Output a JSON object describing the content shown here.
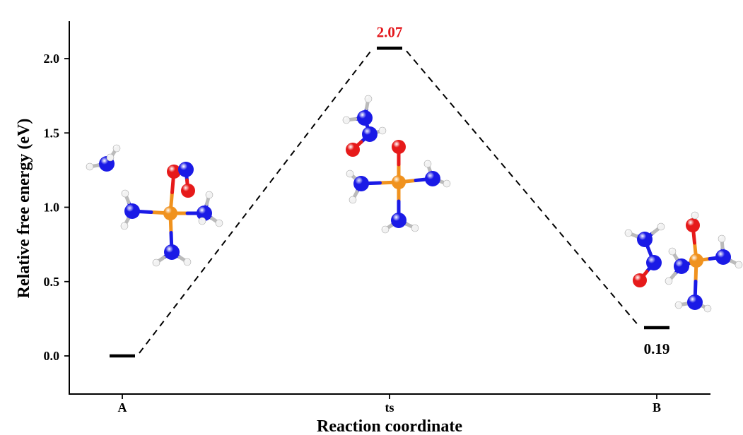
{
  "chart_data": {
    "type": "line",
    "categories": [
      "A",
      "ts",
      "B"
    ],
    "values": [
      0.0,
      2.07,
      0.19
    ],
    "labels": [
      "",
      "2.07",
      "0.19"
    ],
    "label_colors": [
      "#000000",
      "#e3151a",
      "#000000"
    ],
    "xlabel": "Reaction coordinate",
    "ylabel": "Relative free energy (eV)",
    "ylim": [
      -0.25,
      2.25
    ],
    "yticks": [
      0.0,
      0.5,
      1.0,
      1.5,
      2.0
    ],
    "ytick_labels": [
      "0.0",
      "0.5",
      "1.0",
      "1.5",
      "2.0"
    ],
    "grid": false,
    "legend": "none",
    "line_style": "dashed",
    "colors": {
      "nitrogen": "#1a1ae6",
      "oxygen": "#e61a1a",
      "metal": "#f0921e",
      "hydrogen": "#f2f2f2"
    }
  }
}
